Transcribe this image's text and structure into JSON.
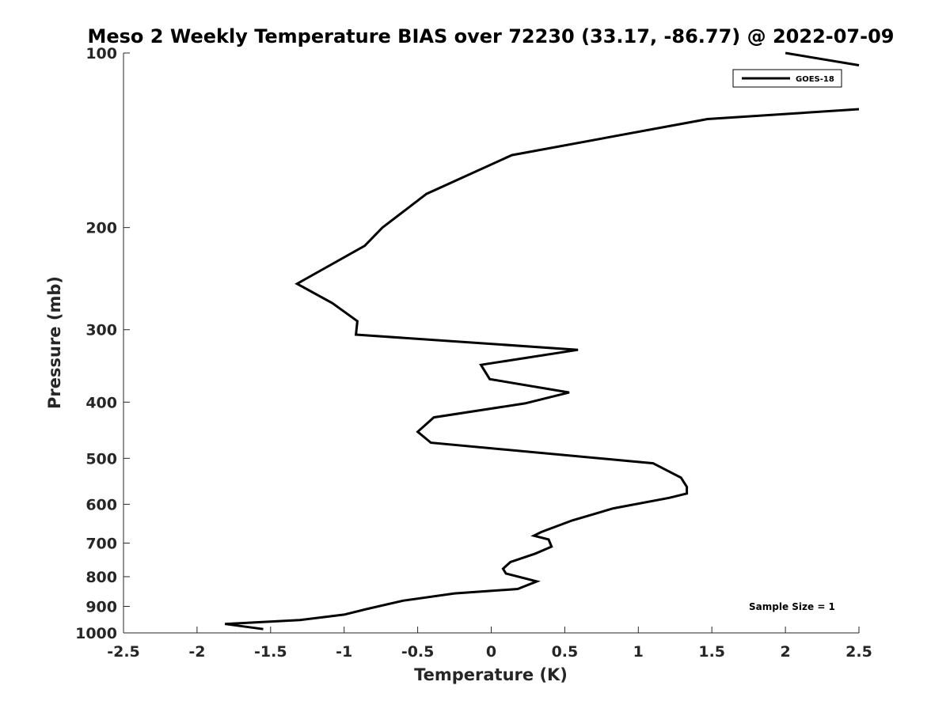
{
  "chart_data": {
    "type": "line",
    "title": "Meso 2 Weekly Temperature BIAS over 72230 (33.17, -86.77) @ 2022-07-09",
    "xlabel": "Temperature (K)",
    "ylabel": "Pressure (mb)",
    "xlim": [
      -2.5,
      2.5
    ],
    "ylim": [
      1000,
      100
    ],
    "yscale": "log",
    "y_reversed": true,
    "x_ticks": [
      "-2.5",
      "-2",
      "-1.5",
      "-1",
      "-0.5",
      "0",
      "0.5",
      "1",
      "1.5",
      "2",
      "2.5"
    ],
    "y_ticks": [
      "100",
      "200",
      "300",
      "400",
      "500",
      "600",
      "700",
      "800",
      "900",
      "1000"
    ],
    "grid": false,
    "legend_position": "top-right",
    "annotation": "Sample Size = 1",
    "series": [
      {
        "name": "GOES-18",
        "color": "#000000",
        "points": [
          [
            2.0,
            100
          ],
          [
            2.5,
            105
          ],
          [
            null,
            null
          ],
          [
            2.5,
            125
          ],
          [
            1.47,
            130
          ],
          [
            0.14,
            150
          ],
          [
            -0.44,
            175
          ],
          [
            -0.74,
            200
          ],
          [
            -0.86,
            215
          ],
          [
            -1.32,
            250
          ],
          [
            -1.08,
            270
          ],
          [
            -0.91,
            290
          ],
          [
            -0.92,
            306
          ],
          [
            0.59,
            325
          ],
          [
            -0.07,
            345
          ],
          [
            -0.01,
            365
          ],
          [
            0.53,
            385
          ],
          [
            0.23,
            402
          ],
          [
            -0.39,
            425
          ],
          [
            -0.5,
            450
          ],
          [
            -0.41,
            470
          ],
          [
            1.1,
            510
          ],
          [
            1.29,
            540
          ],
          [
            1.33,
            560
          ],
          [
            1.33,
            575
          ],
          [
            1.21,
            585
          ],
          [
            0.83,
            610
          ],
          [
            0.55,
            640
          ],
          [
            0.34,
            670
          ],
          [
            0.29,
            680
          ],
          [
            0.39,
            690
          ],
          [
            0.41,
            710
          ],
          [
            0.3,
            730
          ],
          [
            0.13,
            755
          ],
          [
            0.08,
            775
          ],
          [
            0.1,
            790
          ],
          [
            0.31,
            815
          ],
          [
            0.18,
            840
          ],
          [
            -0.25,
            855
          ],
          [
            -0.6,
            880
          ],
          [
            -0.85,
            910
          ],
          [
            -1.0,
            930
          ],
          [
            -1.3,
            950
          ],
          [
            -1.81,
            965
          ],
          [
            -1.55,
            985
          ]
        ]
      }
    ]
  }
}
